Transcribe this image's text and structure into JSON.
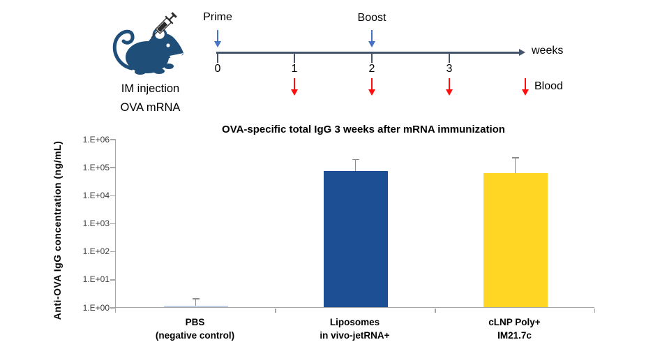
{
  "colors": {
    "timeline": "#44546A",
    "prime_boost_arrow": "#4472C4",
    "blood_arrow": "#FF0D0D",
    "mouse": "#1F4E79",
    "axis": "#A6A6A6",
    "error_bar": "#8C8C8C"
  },
  "schematic": {
    "caption_line1": "IM injection",
    "caption_line2": "OVA mRNA",
    "prime_label": "Prime",
    "boost_label": "Boost",
    "weeks_label": "weeks",
    "blood_label": "Blood",
    "week_ticks": [
      "0",
      "1",
      "2",
      "3"
    ]
  },
  "chart_data": {
    "type": "bar",
    "title": "OVA-specific total IgG 3 weeks after mRNA immunization",
    "ylabel": "Anti-OVA IgG concentration (ng/mL)",
    "y_scale": "log10",
    "ylim": [
      1,
      1000000
    ],
    "y_tick_labels": [
      "1.E+06",
      "1.E+05",
      "1.E+04",
      "1.E+03",
      "1.E+02",
      "1.E+01",
      "1.E+00"
    ],
    "categories": [
      [
        "PBS",
        "(negative control)"
      ],
      [
        "Liposomes",
        "in vivo-jetRNA+"
      ],
      [
        "cLNP Poly+",
        "IM21.7c"
      ]
    ],
    "values": [
      1.05,
      70000,
      60000
    ],
    "error_upper": [
      1.9,
      175000,
      200000
    ],
    "bar_colors": [
      "#C3D1E8",
      "#1C4F94",
      "#FFD623"
    ],
    "grid": false,
    "legend": null
  }
}
